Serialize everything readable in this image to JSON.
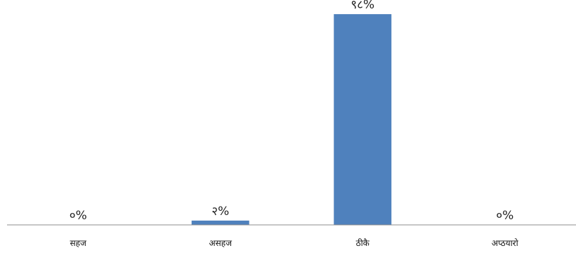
{
  "chart_data": {
    "type": "bar",
    "categories": [
      "सहज",
      "असहज",
      "ठीकै",
      "अप्ठयारो"
    ],
    "values": [
      0,
      2,
      98,
      0
    ],
    "data_labels": [
      "०%",
      "२%",
      "९८%",
      "०%"
    ],
    "ylim": [
      0,
      100
    ],
    "grid": false,
    "legend": "none",
    "bar_color": "#4F81BD",
    "axis_color": "#8C8C8C"
  }
}
